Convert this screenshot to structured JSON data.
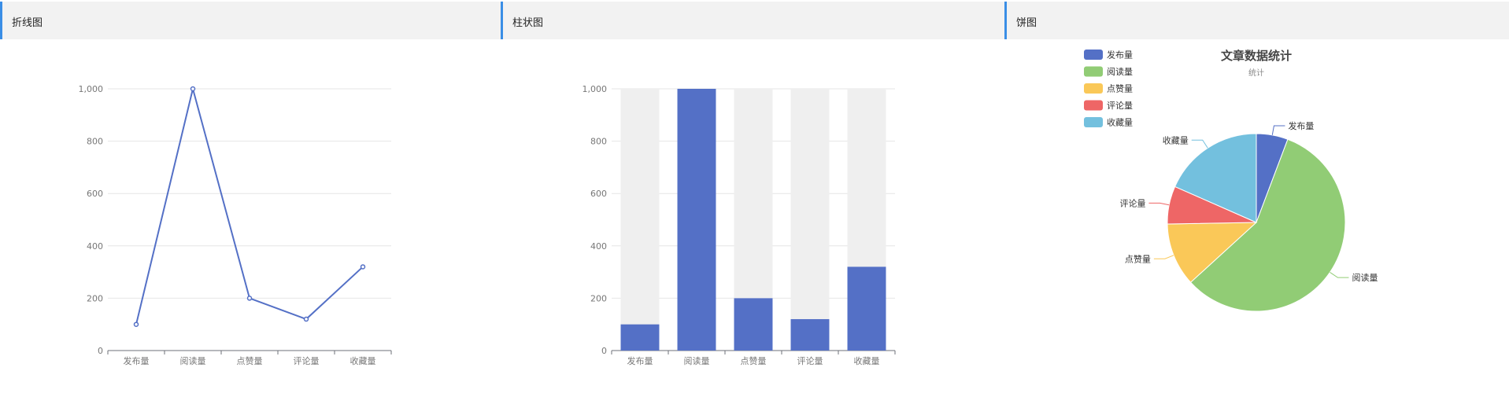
{
  "panels": [
    {
      "title": "折线图"
    },
    {
      "title": "柱状图"
    },
    {
      "title": "饼图"
    }
  ],
  "chart_data": [
    {
      "type": "line",
      "categories": [
        "发布量",
        "阅读量",
        "点赞量",
        "评论量",
        "收藏量"
      ],
      "values": [
        100,
        1000,
        200,
        120,
        320
      ],
      "ylim": [
        0,
        1000
      ],
      "yticks": [
        0,
        200,
        400,
        600,
        800,
        1000
      ],
      "ytick_labels": [
        "0",
        "200",
        "400",
        "600",
        "800",
        "1,000"
      ],
      "color": "#5470c6",
      "grid": true
    },
    {
      "type": "bar",
      "categories": [
        "发布量",
        "阅读量",
        "点赞量",
        "评论量",
        "收藏量"
      ],
      "values": [
        100,
        1000,
        200,
        120,
        320
      ],
      "ylim": [
        0,
        1000
      ],
      "yticks": [
        0,
        200,
        400,
        600,
        800,
        1000
      ],
      "ytick_labels": [
        "0",
        "200",
        "400",
        "600",
        "800",
        "1,000"
      ],
      "color": "#5470c6",
      "background_bar_color": "#efefef",
      "grid": true
    },
    {
      "type": "pie",
      "title": "文章数据统计",
      "subtitle": "统计",
      "categories": [
        "发布量",
        "阅读量",
        "点赞量",
        "评论量",
        "收藏量"
      ],
      "values": [
        100,
        1000,
        200,
        120,
        320
      ],
      "colors": [
        "#5470c6",
        "#91cc75",
        "#fac858",
        "#ee6666",
        "#73c0de"
      ],
      "legend_position": "top-left"
    }
  ]
}
